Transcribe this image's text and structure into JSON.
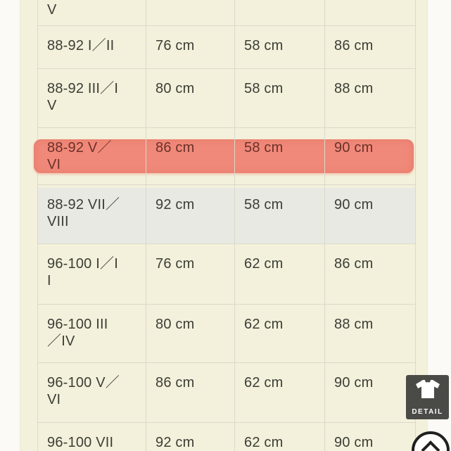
{
  "colors": {
    "page": "#fbfaf6",
    "cream": "#f3f1db",
    "stripe": "#e7e9e2",
    "border": "#dbd9c9",
    "text": "#3c3d37",
    "hl": "#f0897a",
    "hlText": "#6c3028",
    "badge": "#4a4a47",
    "circleBorder": "#20201e"
  },
  "table": {
    "unit": "cm",
    "rows": [
      {
        "label_lines": [
          "V"
        ],
        "cells": [
          "",
          "",
          ""
        ],
        "variant": "cut-top"
      },
      {
        "label_lines": [
          "88-92  I／II"
        ],
        "cells": [
          "76 cm",
          "58 cm",
          "86 cm"
        ]
      },
      {
        "label_lines": [
          "88-92  III／I",
          "V"
        ],
        "cells": [
          "80 cm",
          "58 cm",
          "88 cm"
        ]
      },
      {
        "label_lines": [
          "88-92  V／",
          "VI"
        ],
        "cells": [
          "86 cm",
          "58 cm",
          "90 cm"
        ],
        "variant": "highlight"
      },
      {
        "label_lines": [
          "88-92  VII／",
          "VIII"
        ],
        "cells": [
          "92 cm",
          "58 cm",
          "90 cm"
        ],
        "variant": "stripe"
      },
      {
        "label_lines": [
          "96-100  I／I",
          "I"
        ],
        "cells": [
          "76 cm",
          "62 cm",
          "86 cm"
        ]
      },
      {
        "label_lines": [
          "96-100  III",
          "／IV"
        ],
        "cells": [
          "80 cm",
          "62 cm",
          "88 cm"
        ]
      },
      {
        "label_lines": [
          "96-100  V／",
          "VI"
        ],
        "cells": [
          "86 cm",
          "62 cm",
          "90 cm"
        ]
      },
      {
        "label_lines": [
          "96-100  VII"
        ],
        "cells": [
          "92 cm",
          "62 cm",
          "90 cm"
        ]
      }
    ],
    "highlighted_row_label": "88-92  V／VI"
  },
  "detail_badge": {
    "label": "DETAIL",
    "icon": "tshirt-icon"
  },
  "back_to_top": {
    "icon": "chevron-up-icon"
  }
}
